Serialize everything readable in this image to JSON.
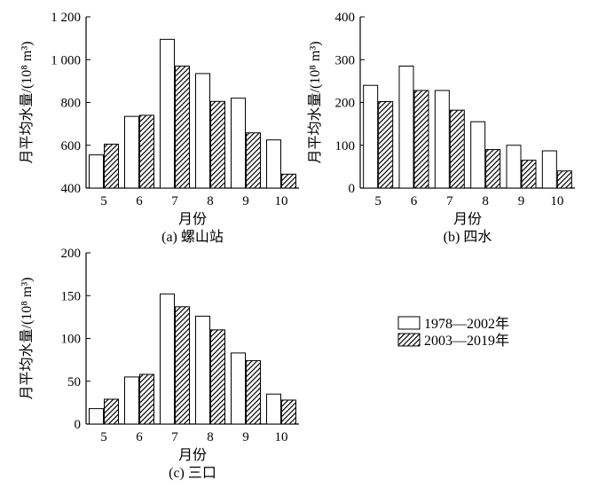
{
  "legend": {
    "items": [
      {
        "label": "1978—2002年",
        "style": "white"
      },
      {
        "label": "2003—2019年",
        "style": "hatched"
      }
    ]
  },
  "chart_data": [
    {
      "type": "bar",
      "caption": "(a) 螺山站",
      "xlabel": "月份",
      "ylabel": "月平均水量/(10⁸ m³)",
      "categories": [
        "5",
        "6",
        "7",
        "8",
        "9",
        "10"
      ],
      "ylim": [
        400,
        1200
      ],
      "yticks": [
        400,
        600,
        800,
        1000,
        1200
      ],
      "ytick_labels": [
        "400",
        "600",
        "800",
        "1 000",
        "1 200"
      ],
      "series": [
        {
          "name": "1978—2002年",
          "style": "white",
          "values": [
            555,
            735,
            1095,
            935,
            820,
            625
          ]
        },
        {
          "name": "2003—2019年",
          "style": "hatched",
          "values": [
            605,
            740,
            970,
            805,
            658,
            465
          ]
        }
      ]
    },
    {
      "type": "bar",
      "caption": "(b) 四水",
      "xlabel": "月份",
      "ylabel": "月平均水量/(10⁸ m³)",
      "categories": [
        "5",
        "6",
        "7",
        "8",
        "9",
        "10"
      ],
      "ylim": [
        0,
        400
      ],
      "yticks": [
        0,
        100,
        200,
        300,
        400
      ],
      "ytick_labels": [
        "0",
        "100",
        "200",
        "300",
        "400"
      ],
      "series": [
        {
          "name": "1978—2002年",
          "style": "white",
          "values": [
            240,
            285,
            228,
            155,
            100,
            87
          ]
        },
        {
          "name": "2003—2019年",
          "style": "hatched",
          "values": [
            202,
            228,
            182,
            90,
            65,
            40
          ]
        }
      ]
    },
    {
      "type": "bar",
      "caption": "(c) 三口",
      "xlabel": "月份",
      "ylabel": "月平均水量/(10⁸ m³)",
      "categories": [
        "5",
        "6",
        "7",
        "8",
        "9",
        "10"
      ],
      "ylim": [
        0,
        200
      ],
      "yticks": [
        0,
        50,
        100,
        150,
        200
      ],
      "ytick_labels": [
        "0",
        "50",
        "100",
        "150",
        "200"
      ],
      "series": [
        {
          "name": "1978—2002年",
          "style": "white",
          "values": [
            18,
            55,
            152,
            126,
            83,
            35
          ]
        },
        {
          "name": "2003—2019年",
          "style": "hatched",
          "values": [
            29,
            58,
            137,
            110,
            74,
            28
          ]
        }
      ]
    }
  ]
}
